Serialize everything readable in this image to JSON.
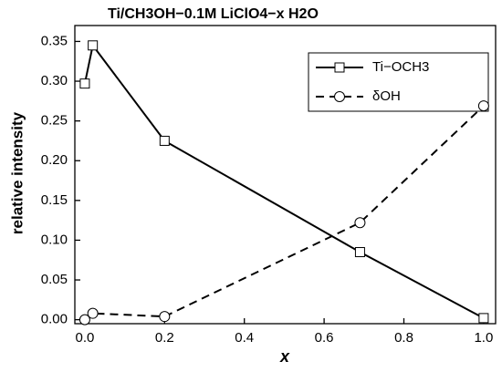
{
  "chart_data": {
    "type": "line",
    "title": "Ti/CH3OH−0.1M LiClO4−x H2O",
    "xlabel": "x",
    "ylabel": "relative intensity",
    "series": [
      {
        "name": "Ti−OCH3",
        "color": "#000000",
        "marker": "square",
        "dashed": false,
        "x": [
          0.0,
          0.02,
          0.2,
          0.69,
          1.0
        ],
        "values": [
          0.297,
          0.345,
          0.225,
          0.085,
          0.002
        ]
      },
      {
        "name": "δOH",
        "color": "#000000",
        "marker": "circle",
        "dashed": true,
        "x": [
          0.0,
          0.02,
          0.2,
          0.69,
          1.0
        ],
        "values": [
          0.0,
          0.008,
          0.004,
          0.122,
          0.269
        ]
      }
    ],
    "xlim": [
      -0.025,
      1.03
    ],
    "xticks": [
      {
        "value": 0,
        "label": "0.0"
      },
      0.2,
      0.4,
      0.6,
      0.8,
      {
        "value": 1,
        "label": "1.0"
      }
    ],
    "ylim": [
      -0.005,
      0.37
    ],
    "yticks": [
      {
        "value": 0,
        "label": "0.00"
      },
      0.05,
      {
        "value": 0.1,
        "label": "0.10"
      },
      0.15,
      {
        "value": 0.2,
        "label": "0.20"
      },
      0.25,
      {
        "value": 0.3,
        "label": "0.30"
      },
      0.35
    ],
    "legend": "upper right"
  }
}
